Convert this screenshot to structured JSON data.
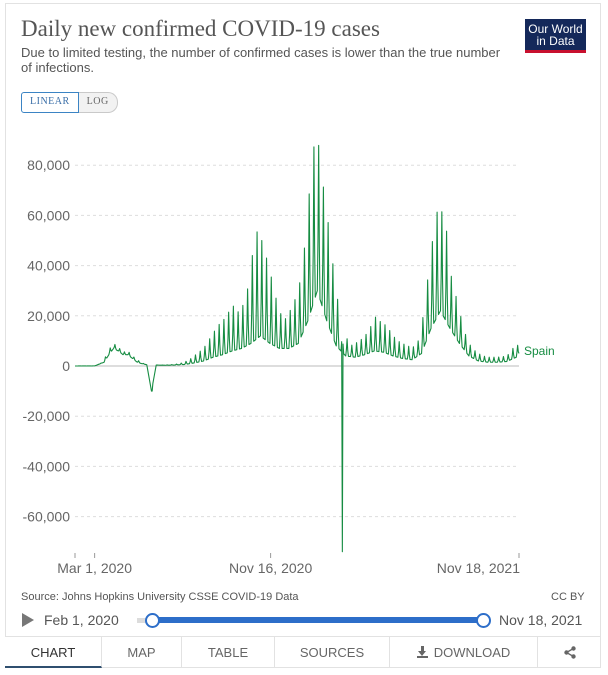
{
  "header": {
    "title": "Daily new confirmed COVID-19 cases",
    "subtitle": "Due to limited testing, the number of confirmed cases is lower than the true number of infections.",
    "logo_line1": "Our World",
    "logo_line2": "in Data"
  },
  "scale_toggle": {
    "linear": "LINEAR",
    "log": "LOG",
    "selected": "linear"
  },
  "chart_data": {
    "type": "line",
    "title": "Daily new confirmed COVID-19 cases",
    "xlabel": "",
    "ylabel": "",
    "x_ticks": [
      "Mar 1, 2020",
      "Nov 16, 2020",
      "Nov 18, 2021"
    ],
    "y_ticks": [
      "80,000",
      "60,000",
      "40,000",
      "20,000",
      "0",
      "-20,000",
      "-40,000",
      "-60,000"
    ],
    "ylim": [
      -75000,
      93000
    ],
    "xlim": [
      "2020-02-01",
      "2021-11-18"
    ],
    "grid": true,
    "legend": "end-of-line label",
    "series": [
      {
        "name": "Spain",
        "color": "#168c42",
        "weekly_peak": [
          [
            "2020-02-01",
            0
          ],
          [
            "2020-02-26",
            0
          ],
          [
            "2020-03-01",
            100
          ],
          [
            "2020-03-08",
            500
          ],
          [
            "2020-03-15",
            2500
          ],
          [
            "2020-03-22",
            6500
          ],
          [
            "2020-03-29",
            9000
          ],
          [
            "2020-04-05",
            7500
          ],
          [
            "2020-04-12",
            5500
          ],
          [
            "2020-04-19",
            6000
          ],
          [
            "2020-04-26",
            4000
          ],
          [
            "2020-05-03",
            2500
          ],
          [
            "2020-05-10",
            1200
          ],
          [
            "2020-05-17",
            600
          ],
          [
            "2020-05-24",
            -10000
          ],
          [
            "2020-05-31",
            400
          ],
          [
            "2020-06-07",
            350
          ],
          [
            "2020-06-14",
            400
          ],
          [
            "2020-06-21",
            500
          ],
          [
            "2020-06-28",
            700
          ],
          [
            "2020-07-05",
            1000
          ],
          [
            "2020-07-12",
            1600
          ],
          [
            "2020-07-19",
            2500
          ],
          [
            "2020-07-26",
            4000
          ],
          [
            "2020-08-02",
            5500
          ],
          [
            "2020-08-09",
            7000
          ],
          [
            "2020-08-16",
            10000
          ],
          [
            "2020-08-23",
            13000
          ],
          [
            "2020-08-30",
            16000
          ],
          [
            "2020-09-06",
            18000
          ],
          [
            "2020-09-13",
            20000
          ],
          [
            "2020-09-20",
            25000
          ],
          [
            "2020-09-27",
            21000
          ],
          [
            "2020-10-04",
            23000
          ],
          [
            "2020-10-11",
            27000
          ],
          [
            "2020-10-18",
            40000
          ],
          [
            "2020-10-25",
            54000
          ],
          [
            "2020-11-01",
            52000
          ],
          [
            "2020-11-08",
            45000
          ],
          [
            "2020-11-15",
            38000
          ],
          [
            "2020-11-22",
            29000
          ],
          [
            "2020-11-29",
            22000
          ],
          [
            "2020-12-06",
            18000
          ],
          [
            "2020-12-13",
            21000
          ],
          [
            "2020-12-20",
            25000
          ],
          [
            "2020-12-27",
            30000
          ],
          [
            "2021-01-03",
            41000
          ],
          [
            "2021-01-10",
            62000
          ],
          [
            "2021-01-17",
            85000
          ],
          [
            "2021-01-24",
            93000
          ],
          [
            "2021-01-31",
            75000
          ],
          [
            "2021-02-07",
            62000
          ],
          [
            "2021-02-14",
            45000
          ],
          [
            "2021-02-21",
            30000
          ],
          [
            "2021-02-28",
            18000
          ],
          [
            "2021-03-07",
            12000
          ],
          [
            "2021-03-14",
            8000
          ],
          [
            "2021-03-21",
            9000
          ],
          [
            "2021-03-28",
            10000
          ],
          [
            "2021-04-04",
            12000
          ],
          [
            "2021-04-11",
            14000
          ],
          [
            "2021-04-18",
            20000
          ],
          [
            "2021-04-25",
            18000
          ],
          [
            "2021-05-02",
            17000
          ],
          [
            "2021-05-09",
            15000
          ],
          [
            "2021-05-16",
            12000
          ],
          [
            "2021-05-23",
            10000
          ],
          [
            "2021-05-30",
            9000
          ],
          [
            "2021-06-06",
            8000
          ],
          [
            "2021-06-13",
            7500
          ],
          [
            "2021-06-20",
            8000
          ],
          [
            "2021-06-27",
            15000
          ],
          [
            "2021-07-04",
            30000
          ],
          [
            "2021-07-11",
            45000
          ],
          [
            "2021-07-18",
            61000
          ],
          [
            "2021-07-25",
            62000
          ],
          [
            "2021-08-01",
            60000
          ],
          [
            "2021-08-08",
            38000
          ],
          [
            "2021-08-15",
            30000
          ],
          [
            "2021-08-22",
            22000
          ],
          [
            "2021-08-29",
            14000
          ],
          [
            "2021-09-05",
            9000
          ],
          [
            "2021-09-12",
            6500
          ],
          [
            "2021-09-19",
            5000
          ],
          [
            "2021-09-26",
            4000
          ],
          [
            "2021-10-03",
            3500
          ],
          [
            "2021-10-10",
            3500
          ],
          [
            "2021-10-17",
            3500
          ],
          [
            "2021-10-24",
            3700
          ],
          [
            "2021-10-31",
            4000
          ],
          [
            "2021-11-07",
            6000
          ],
          [
            "2021-11-14",
            9500
          ],
          [
            "2021-11-18",
            7000
          ]
        ],
        "weekly_base": [
          [
            "2020-02-01",
            0
          ],
          [
            "2020-03-01",
            50
          ],
          [
            "2020-03-15",
            1500
          ],
          [
            "2020-03-22",
            4500
          ],
          [
            "2020-03-29",
            7000
          ],
          [
            "2020-04-05",
            6000
          ],
          [
            "2020-04-12",
            4500
          ],
          [
            "2020-04-19",
            4500
          ],
          [
            "2020-04-26",
            3000
          ],
          [
            "2020-05-03",
            1500
          ],
          [
            "2020-05-10",
            900
          ],
          [
            "2020-05-17",
            500
          ],
          [
            "2020-05-24",
            400
          ],
          [
            "2020-06-14",
            300
          ],
          [
            "2020-06-28",
            400
          ],
          [
            "2020-07-12",
            600
          ],
          [
            "2020-07-26",
            1200
          ],
          [
            "2020-08-09",
            2000
          ],
          [
            "2020-08-23",
            3500
          ],
          [
            "2020-09-06",
            4500
          ],
          [
            "2020-09-20",
            6000
          ],
          [
            "2020-10-04",
            7000
          ],
          [
            "2020-10-18",
            9000
          ],
          [
            "2020-11-01",
            12000
          ],
          [
            "2020-11-15",
            9000
          ],
          [
            "2020-11-29",
            7000
          ],
          [
            "2020-12-13",
            7000
          ],
          [
            "2020-12-27",
            9000
          ],
          [
            "2021-01-10",
            18000
          ],
          [
            "2021-01-24",
            30000
          ],
          [
            "2021-02-07",
            18000
          ],
          [
            "2021-02-21",
            8000
          ],
          [
            "2021-03-07",
            4000
          ],
          [
            "2021-03-21",
            3500
          ],
          [
            "2021-04-04",
            4500
          ],
          [
            "2021-04-18",
            6000
          ],
          [
            "2021-05-02",
            5500
          ],
          [
            "2021-05-16",
            4000
          ],
          [
            "2021-05-30",
            3000
          ],
          [
            "2021-06-13",
            2500
          ],
          [
            "2021-06-27",
            5000
          ],
          [
            "2021-07-11",
            15000
          ],
          [
            "2021-07-25",
            22000
          ],
          [
            "2021-08-08",
            15000
          ],
          [
            "2021-08-22",
            9000
          ],
          [
            "2021-09-05",
            4000
          ],
          [
            "2021-09-19",
            2000
          ],
          [
            "2021-10-03",
            1500
          ],
          [
            "2021-10-17",
            1500
          ],
          [
            "2021-10-31",
            1800
          ],
          [
            "2021-11-14",
            3500
          ],
          [
            "2021-11-18",
            5000
          ]
        ],
        "outliers": [
          [
            "2020-05-25",
            -10000
          ],
          [
            "2021-03-02",
            -74000
          ]
        ]
      }
    ]
  },
  "footer": {
    "source": "Source: Johns Hopkins University CSSE COVID-19 Data",
    "license": "CC BY"
  },
  "timeline": {
    "start_label": "Feb 1, 2020",
    "end_label": "Nov 18, 2021"
  },
  "tabs": [
    {
      "label": "CHART"
    },
    {
      "label": "MAP"
    },
    {
      "label": "TABLE"
    },
    {
      "label": "SOURCES"
    },
    {
      "label": "DOWNLOAD"
    }
  ],
  "icons": {
    "share": "share-icon",
    "download": "download-icon",
    "play": "play-icon"
  }
}
